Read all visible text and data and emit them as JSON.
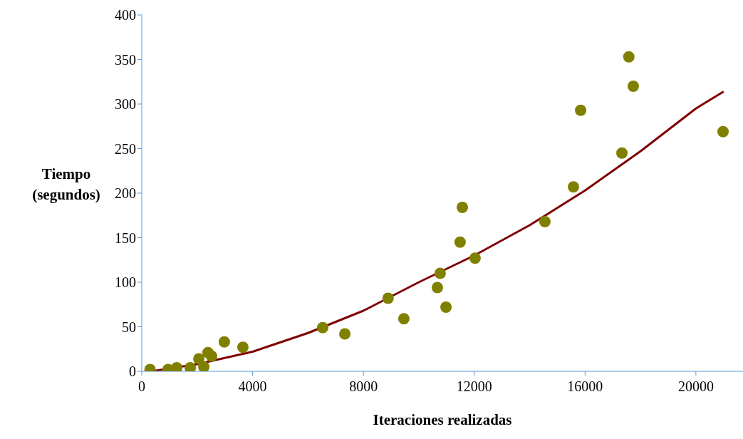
{
  "chart_data": {
    "type": "scatter",
    "xlabel": "Iteraciones realizadas",
    "ylabel": "Tiempo (segundos)",
    "xlim": [
      0,
      21700
    ],
    "xticks": [
      0,
      4000,
      8000,
      12000,
      16000,
      20000
    ],
    "ylim": [
      0,
      400
    ],
    "yticks": [
      0,
      50,
      100,
      150,
      200,
      250,
      300,
      350,
      400
    ],
    "grid": false,
    "legend": false,
    "marker": "circle",
    "series": [
      {
        "color": "#808000",
        "x": [
          300,
          950,
          1260,
          1750,
          2060,
          2240,
          2390,
          2520,
          2980,
          3650,
          6530,
          7330,
          8890,
          9460,
          10670,
          10770,
          10980,
          11490,
          11570,
          12030,
          14550,
          15580,
          15840,
          17330,
          17580,
          17740,
          20980
        ],
        "values": [
          2,
          2,
          4,
          4,
          14,
          5,
          21,
          17,
          33,
          27,
          49,
          42,
          82,
          59,
          94,
          110,
          72,
          145,
          184,
          127,
          168,
          207,
          293,
          245,
          353,
          320,
          269
        ]
      },
      {
        "type": "line",
        "color": "#800000",
        "marker": "none",
        "line_style": "solid",
        "x": [
          360,
          2000,
          4000,
          6000,
          8000,
          10000,
          12000,
          14000,
          16000,
          18000,
          20000,
          21000
        ],
        "values": [
          0,
          8,
          22,
          43,
          68,
          100,
          130,
          164,
          203,
          247,
          295,
          314
        ]
      }
    ]
  }
}
